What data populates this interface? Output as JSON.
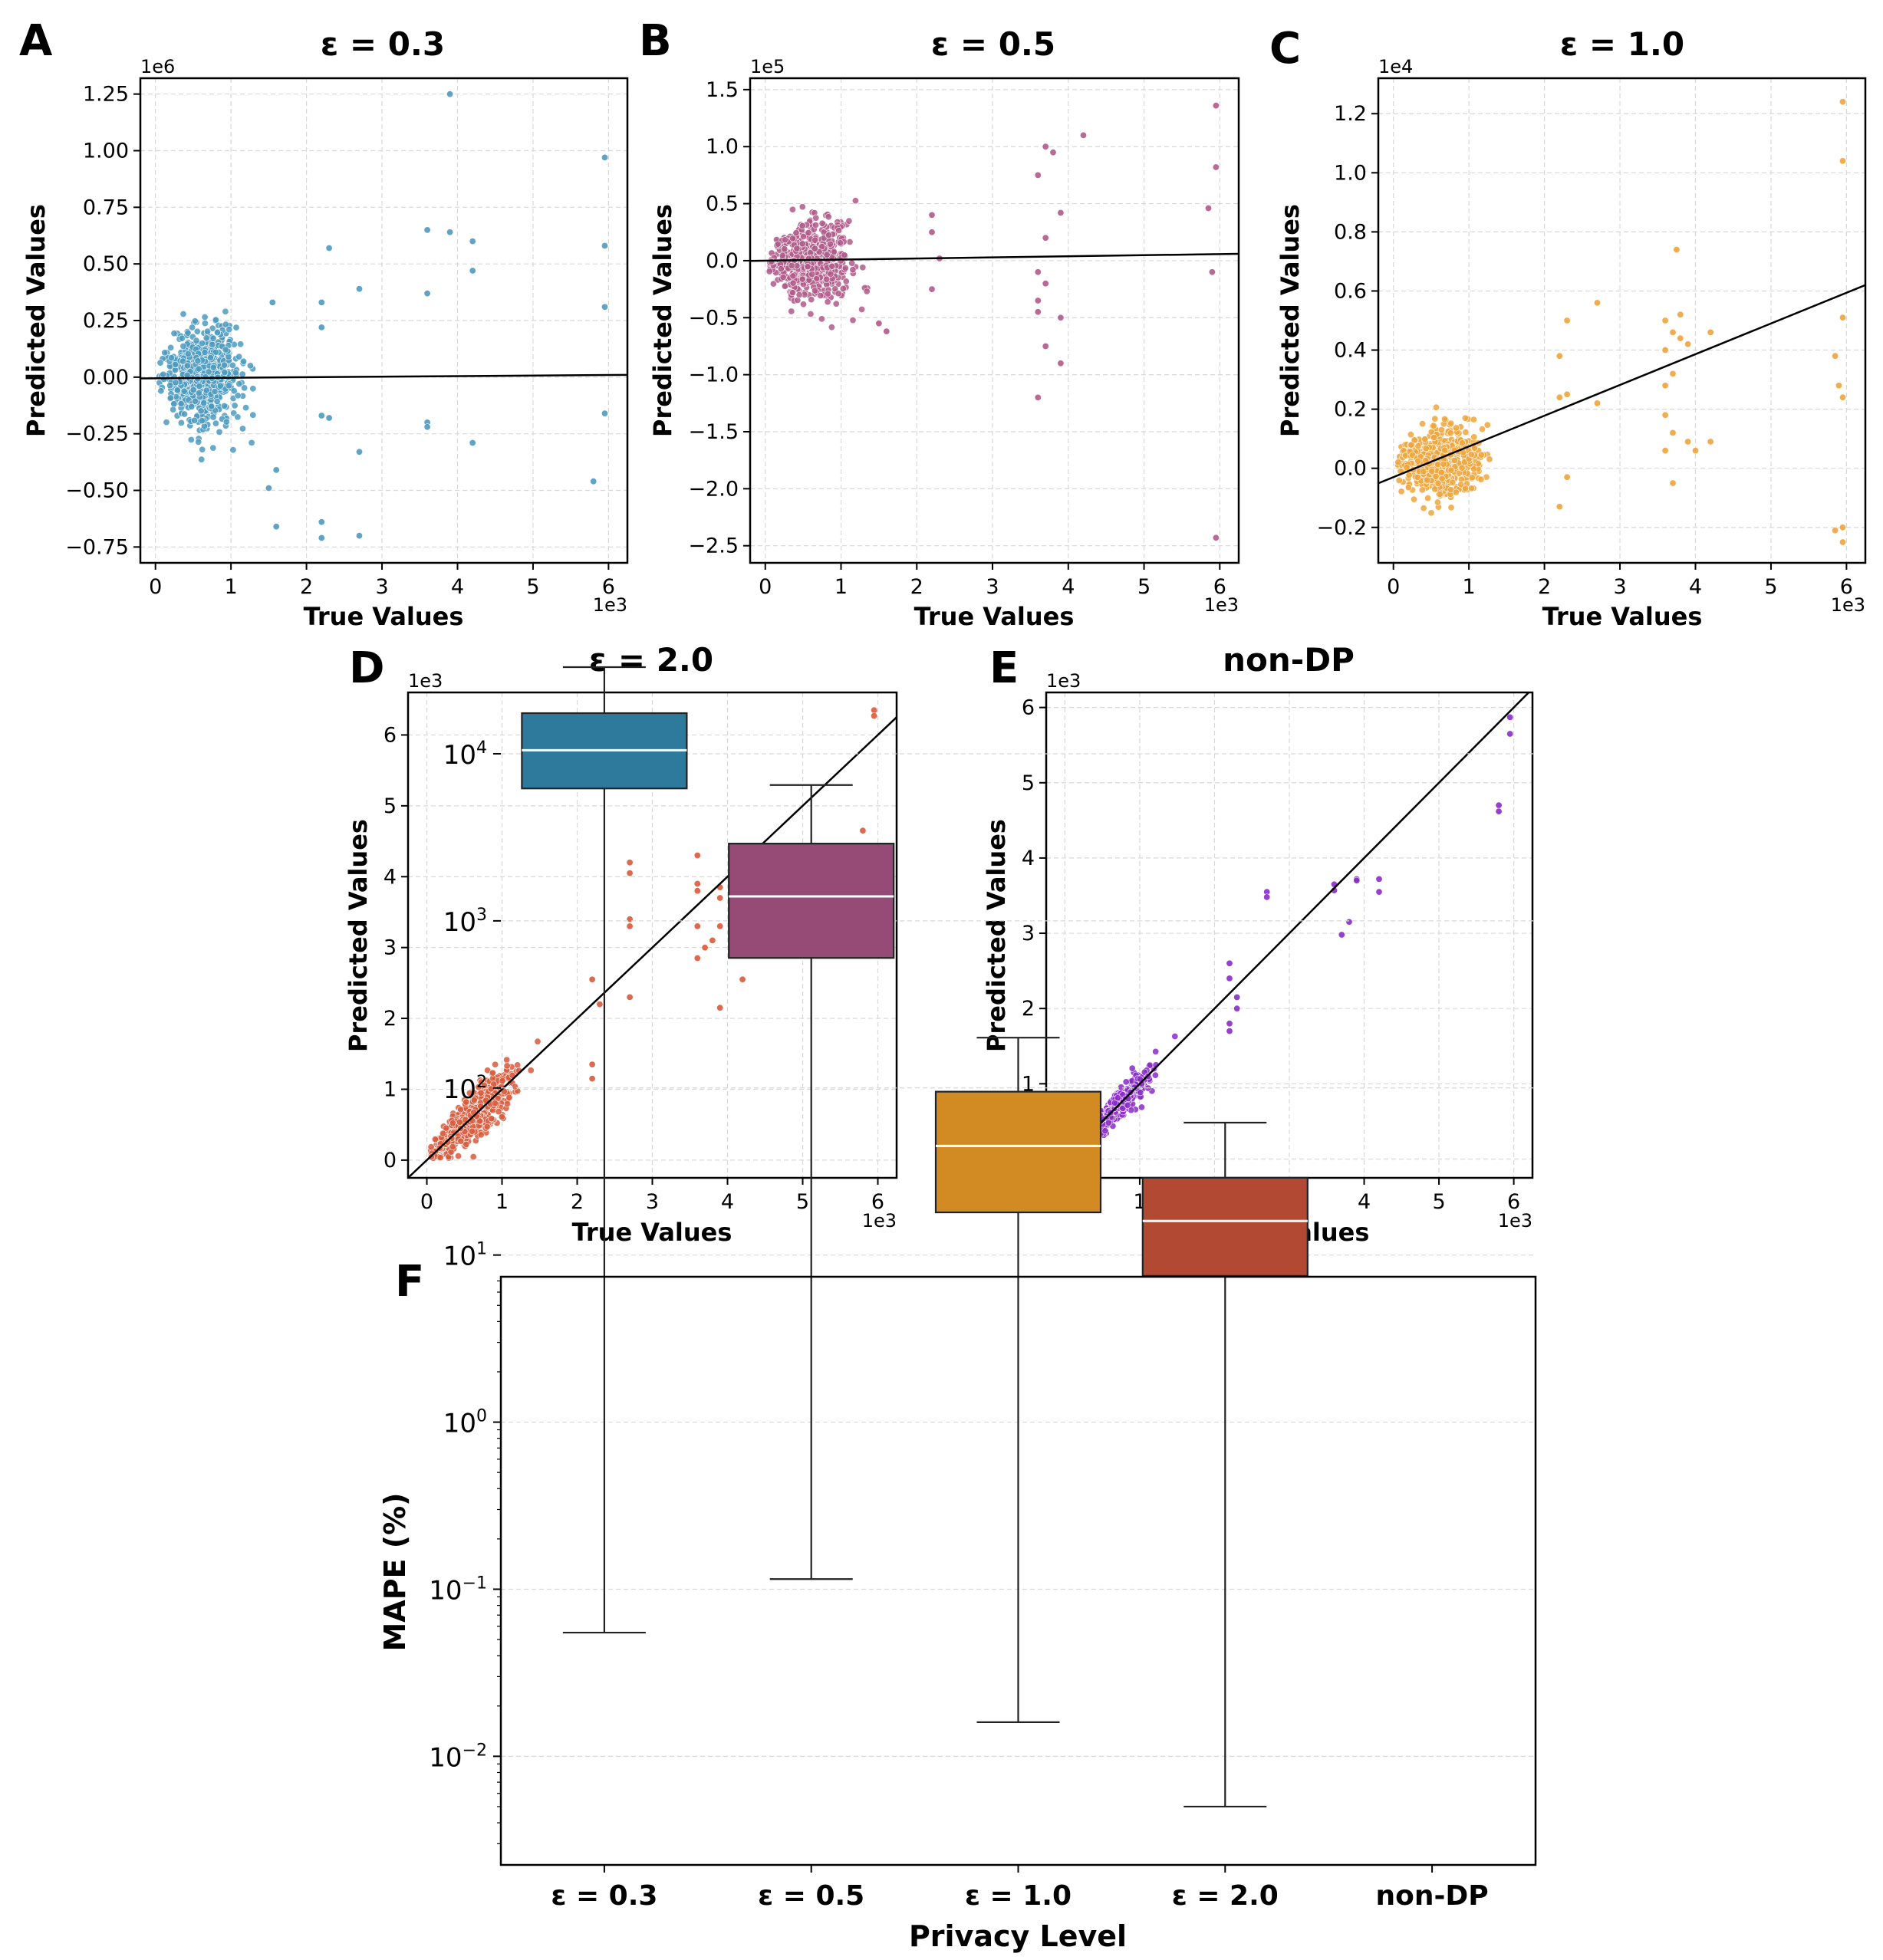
{
  "figure": {
    "x_label": "True Values",
    "y_label": "Predicted Values",
    "x_offset_label": "1e3",
    "x_ticks": [
      "0",
      "1",
      "2",
      "3",
      "4",
      "5",
      "6"
    ]
  },
  "chart_data": [
    {
      "id": "A",
      "type": "scatter",
      "panel_label": "A",
      "title": "ε = 0.3",
      "color": "#4c9ac0",
      "xlabel": "True Values",
      "ylabel": "Predicted Values",
      "x_multiplier": "1e3",
      "y_multiplier": "1e6",
      "xlim": [
        -0.2,
        6.25
      ],
      "ylim": [
        -0.82,
        1.32
      ],
      "y_tick_values": [
        -0.75,
        -0.5,
        -0.25,
        0,
        0.25,
        0.5,
        0.75,
        1.0,
        1.25
      ],
      "y_tick_labels": [
        "−0.75",
        "−0.50",
        "−0.25",
        "0.00",
        "0.25",
        "0.50",
        "0.75",
        "1.00",
        "1.25"
      ],
      "fit_line": {
        "y_at_x0": -0.005,
        "y_at_x6_25": 0.01
      },
      "cluster": {
        "x_center": 0.6,
        "x_spread": 0.45,
        "y_spread": 0.13
      },
      "outliers": [
        [
          2.2,
          0.33
        ],
        [
          2.2,
          0.22
        ],
        [
          2.3,
          0.57
        ],
        [
          2.2,
          -0.17
        ],
        [
          2.3,
          -0.18
        ],
        [
          2.2,
          -0.64
        ],
        [
          2.2,
          -0.71
        ],
        [
          2.7,
          0.39
        ],
        [
          2.7,
          -0.33
        ],
        [
          2.7,
          -0.7
        ],
        [
          3.6,
          0.65
        ],
        [
          3.6,
          0.37
        ],
        [
          3.6,
          -0.2
        ],
        [
          3.6,
          -0.22
        ],
        [
          3.9,
          1.25
        ],
        [
          3.9,
          0.64
        ],
        [
          4.2,
          0.6
        ],
        [
          4.2,
          0.47
        ],
        [
          4.2,
          -0.29
        ],
        [
          5.8,
          -0.46
        ],
        [
          5.95,
          0.97
        ],
        [
          5.95,
          0.58
        ],
        [
          5.95,
          0.31
        ],
        [
          5.95,
          -0.16
        ],
        [
          1.5,
          -0.49
        ],
        [
          1.6,
          -0.66
        ],
        [
          1.6,
          -0.41
        ],
        [
          1.55,
          0.33
        ]
      ]
    },
    {
      "id": "B",
      "type": "scatter",
      "panel_label": "B",
      "title": "ε = 0.5",
      "color": "#b05a8a",
      "xlabel": "True Values",
      "ylabel": "Predicted Values",
      "x_multiplier": "1e3",
      "y_multiplier": "1e5",
      "xlim": [
        -0.2,
        6.25
      ],
      "ylim": [
        -2.65,
        1.6
      ],
      "y_tick_values": [
        -2.5,
        -2.0,
        -1.5,
        -1.0,
        -0.5,
        0,
        0.5,
        1.0,
        1.5
      ],
      "y_tick_labels": [
        "−2.5",
        "−2.0",
        "−1.5",
        "−1.0",
        "−0.5",
        "0.0",
        "0.5",
        "1.0",
        "1.5"
      ],
      "fit_line": {
        "y_at_x0": 0.0,
        "y_at_x6_25": 0.06
      },
      "cluster": {
        "x_center": 0.6,
        "x_spread": 0.45,
        "y_spread": 0.2
      },
      "outliers": [
        [
          2.2,
          0.4
        ],
        [
          2.2,
          0.25
        ],
        [
          2.3,
          0.02
        ],
        [
          2.2,
          -0.25
        ],
        [
          3.6,
          0.75
        ],
        [
          3.7,
          1.0
        ],
        [
          3.8,
          0.95
        ],
        [
          3.7,
          0.2
        ],
        [
          3.6,
          -0.1
        ],
        [
          3.7,
          -0.2
        ],
        [
          3.6,
          -0.35
        ],
        [
          3.6,
          -0.45
        ],
        [
          3.7,
          -0.75
        ],
        [
          3.6,
          -1.2
        ],
        [
          3.9,
          0.42
        ],
        [
          3.9,
          -0.5
        ],
        [
          3.9,
          -0.9
        ],
        [
          4.2,
          1.1
        ],
        [
          5.85,
          0.46
        ],
        [
          5.9,
          -0.1
        ],
        [
          5.95,
          1.36
        ],
        [
          5.95,
          0.82
        ],
        [
          5.95,
          -2.43
        ],
        [
          1.6,
          -0.62
        ],
        [
          1.5,
          -0.55
        ]
      ]
    },
    {
      "id": "C",
      "type": "scatter",
      "panel_label": "C",
      "title": "ε = 1.0",
      "color": "#f0a43a",
      "xlabel": "True Values",
      "ylabel": "Predicted Values",
      "x_multiplier": "1e3",
      "y_multiplier": "1e4",
      "xlim": [
        -0.2,
        6.25
      ],
      "ylim": [
        -0.32,
        1.32
      ],
      "y_tick_values": [
        -0.2,
        0,
        0.2,
        0.4,
        0.6,
        0.8,
        1.0,
        1.2
      ],
      "y_tick_labels": [
        "−0.2",
        "0.0",
        "0.2",
        "0.4",
        "0.6",
        "0.8",
        "1.0",
        "1.2"
      ],
      "fit_line": {
        "y_at_x0": -0.03,
        "y_at_x6_25": 0.62
      },
      "cluster": {
        "x_center": 0.6,
        "x_spread": 0.45,
        "y_spread": 0.06
      },
      "outliers": [
        [
          2.2,
          0.38
        ],
        [
          2.2,
          0.24
        ],
        [
          2.3,
          0.5
        ],
        [
          2.3,
          0.25
        ],
        [
          2.2,
          -0.13
        ],
        [
          2.3,
          -0.03
        ],
        [
          2.7,
          0.56
        ],
        [
          2.7,
          0.22
        ],
        [
          3.6,
          0.5
        ],
        [
          3.6,
          0.4
        ],
        [
          3.6,
          0.28
        ],
        [
          3.6,
          0.18
        ],
        [
          3.6,
          0.06
        ],
        [
          3.7,
          0.46
        ],
        [
          3.7,
          0.32
        ],
        [
          3.7,
          0.12
        ],
        [
          3.75,
          0.74
        ],
        [
          3.8,
          0.52
        ],
        [
          3.8,
          0.44
        ],
        [
          3.7,
          -0.05
        ],
        [
          3.9,
          0.42
        ],
        [
          3.9,
          0.09
        ],
        [
          4.0,
          0.06
        ],
        [
          4.2,
          0.46
        ],
        [
          4.2,
          0.09
        ],
        [
          5.85,
          0.38
        ],
        [
          5.9,
          0.28
        ],
        [
          5.95,
          1.24
        ],
        [
          5.95,
          1.04
        ],
        [
          5.95,
          0.51
        ],
        [
          5.95,
          0.24
        ],
        [
          5.85,
          -0.21
        ],
        [
          5.95,
          -0.2
        ],
        [
          5.95,
          -0.25
        ]
      ]
    },
    {
      "id": "D",
      "type": "scatter",
      "panel_label": "D",
      "title": "ε = 2.0",
      "color": "#d95a3c",
      "xlabel": "True Values",
      "ylabel": "Predicted Values",
      "x_multiplier": "1e3",
      "y_multiplier": "1e3",
      "xlim": [
        -0.25,
        6.25
      ],
      "ylim": [
        -0.25,
        6.6
      ],
      "y_tick_values": [
        0,
        1,
        2,
        3,
        4,
        5,
        6
      ],
      "y_tick_labels": [
        "0",
        "1",
        "2",
        "3",
        "4",
        "5",
        "6"
      ],
      "fit_line": {
        "y_at_x0": 0.0,
        "y_at_x6_25": 6.25
      },
      "cluster": {
        "x_center": 0.6,
        "x_spread": 0.45,
        "y_spread": 0.2,
        "follows_identity": true
      },
      "outliers": [
        [
          2.2,
          2.55
        ],
        [
          2.2,
          1.35
        ],
        [
          2.2,
          1.15
        ],
        [
          2.3,
          2.2
        ],
        [
          2.7,
          4.2
        ],
        [
          2.7,
          4.05
        ],
        [
          2.7,
          3.4
        ],
        [
          2.7,
          3.3
        ],
        [
          2.7,
          2.3
        ],
        [
          3.6,
          4.3
        ],
        [
          3.6,
          3.9
        ],
        [
          3.6,
          3.8
        ],
        [
          3.6,
          3.3
        ],
        [
          3.6,
          2.85
        ],
        [
          3.7,
          3.0
        ],
        [
          3.8,
          3.1
        ],
        [
          3.9,
          3.85
        ],
        [
          3.9,
          3.7
        ],
        [
          3.9,
          3.3
        ],
        [
          3.9,
          2.15
        ],
        [
          4.2,
          3.95
        ],
        [
          4.2,
          3.5
        ],
        [
          4.2,
          2.55
        ],
        [
          5.8,
          4.65
        ],
        [
          5.8,
          4.1
        ],
        [
          5.95,
          6.35
        ],
        [
          5.95,
          6.27
        ]
      ]
    },
    {
      "id": "E",
      "type": "scatter",
      "panel_label": "E",
      "title": "non-DP",
      "color": "#8a2cc9",
      "xlabel": "True Values",
      "ylabel": "Predicted Values",
      "x_multiplier": "1e3",
      "y_multiplier": "1e3",
      "xlim": [
        -0.25,
        6.25
      ],
      "ylim": [
        -0.25,
        6.2
      ],
      "y_tick_values": [
        0,
        1,
        2,
        3,
        4,
        5,
        6
      ],
      "y_tick_labels": [
        "0",
        "1",
        "2",
        "3",
        "4",
        "5",
        "6"
      ],
      "fit_line": {
        "y_at_x0": 0.0,
        "y_at_x6_25": 6.25
      },
      "cluster": {
        "x_center": 0.6,
        "x_spread": 0.45,
        "y_spread": 0.1,
        "follows_identity": true
      },
      "outliers": [
        [
          2.2,
          2.6
        ],
        [
          2.2,
          2.4
        ],
        [
          2.2,
          1.8
        ],
        [
          2.2,
          1.7
        ],
        [
          2.3,
          2.15
        ],
        [
          2.3,
          2.0
        ],
        [
          2.7,
          3.55
        ],
        [
          2.7,
          3.48
        ],
        [
          3.6,
          3.65
        ],
        [
          3.6,
          3.57
        ],
        [
          3.7,
          2.98
        ],
        [
          3.8,
          3.15
        ],
        [
          3.9,
          3.72
        ],
        [
          3.9,
          3.7
        ],
        [
          4.2,
          3.72
        ],
        [
          4.2,
          3.55
        ],
        [
          5.8,
          4.7
        ],
        [
          5.8,
          4.62
        ],
        [
          5.95,
          5.87
        ],
        [
          5.95,
          5.65
        ]
      ]
    },
    {
      "id": "F",
      "type": "box",
      "panel_label": "F",
      "y_scale": "log",
      "xlabel": "Privacy Level",
      "ylabel": "MAPE (%)",
      "ylim_exp": [
        -2.65,
        0.87
      ],
      "y_tick_exponents": [
        -2,
        -1,
        0,
        1,
        2,
        3,
        4
      ],
      "y_tick_labels": [
        "10",
        "10",
        "10",
        "10",
        "10",
        "10",
        "10"
      ],
      "y_tick_superscripts": [
        "−2",
        "−1",
        "0",
        "1",
        "2",
        "3",
        "4"
      ],
      "categories": [
        "ε = 0.3",
        "ε = 0.5",
        "ε = 1.0",
        "ε = 2.0",
        "non-DP"
      ],
      "boxes": [
        {
          "name": "ε = 0.3",
          "color": "#2e7a9c",
          "whisker_low": 0.055,
          "q1": 6200,
          "median": 10500,
          "q3": 17500,
          "whisker_high": 33000
        },
        {
          "name": "ε = 0.5",
          "color": "#964a76",
          "whisker_low": 0.115,
          "q1": 600,
          "median": 1400,
          "q3": 2900,
          "whisker_high": 6500
        },
        {
          "name": "ε = 1.0",
          "color": "#d18b22",
          "whisker_low": 0.016,
          "q1": 18,
          "median": 45,
          "q3": 95,
          "whisker_high": 200
        },
        {
          "name": "ε = 2.0",
          "color": "#b24a33",
          "whisker_low": 0.005,
          "q1": 7.5,
          "median": 16,
          "q3": 29,
          "whisker_high": 62
        },
        {
          "name": "non-DP",
          "color": "#7a2cb0",
          "whisker_low": null,
          "q1": null,
          "median": null,
          "q3": null,
          "whisker_high": null
        }
      ]
    }
  ]
}
